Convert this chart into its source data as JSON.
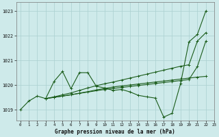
{
  "title": "Graphe pression niveau de la mer (hPa)",
  "bg_color": "#ceeaea",
  "grid_color": "#aad0d0",
  "line_color": "#1a5c1a",
  "xlim": [
    -0.5,
    23
  ],
  "ylim": [
    1018.55,
    1023.35
  ],
  "yticks": [
    1019,
    1020,
    1021,
    1022,
    1023
  ],
  "xticks": [
    0,
    1,
    2,
    3,
    4,
    5,
    6,
    7,
    8,
    9,
    10,
    11,
    12,
    13,
    14,
    15,
    16,
    17,
    18,
    19,
    20,
    21,
    22,
    23
  ],
  "s1_x": [
    0,
    1,
    2,
    3,
    4,
    5,
    6,
    7,
    8,
    9,
    10,
    11,
    12,
    13,
    14,
    15,
    16,
    17,
    18,
    19,
    20,
    21,
    22
  ],
  "s1_y": [
    1019.0,
    1019.35,
    1019.55,
    1019.45,
    1020.15,
    1020.55,
    1019.85,
    1020.5,
    1020.5,
    1019.95,
    1019.88,
    1019.78,
    1019.82,
    1019.72,
    1019.58,
    1019.52,
    1019.47,
    1018.7,
    1018.85,
    1020.05,
    1021.75,
    1022.05,
    1023.0
  ],
  "s2_x": [
    3,
    4,
    5,
    6,
    7,
    8,
    9,
    10,
    11,
    12,
    13,
    14,
    15,
    16,
    17,
    18,
    19,
    20,
    21,
    22
  ],
  "s2_y": [
    1019.45,
    1019.52,
    1019.6,
    1019.68,
    1019.78,
    1019.88,
    1019.97,
    1020.05,
    1020.12,
    1020.2,
    1020.28,
    1020.36,
    1020.44,
    1020.52,
    1020.6,
    1020.68,
    1020.76,
    1020.82,
    1021.78,
    1022.12
  ],
  "s3_x": [
    3,
    4,
    5,
    6,
    7,
    8,
    9,
    10,
    11,
    12,
    13,
    14,
    15,
    16,
    17,
    18,
    19,
    20,
    21,
    22
  ],
  "s3_y": [
    1019.45,
    1019.5,
    1019.55,
    1019.6,
    1019.67,
    1019.73,
    1019.8,
    1019.86,
    1019.92,
    1019.96,
    1020.0,
    1020.04,
    1020.08,
    1020.12,
    1020.16,
    1020.2,
    1020.24,
    1020.28,
    1020.32,
    1020.35
  ],
  "s4_x": [
    3,
    4,
    10,
    11,
    12,
    13,
    14,
    15,
    16,
    17,
    18,
    19,
    20,
    21,
    22
  ],
  "s4_y": [
    1019.45,
    1019.5,
    1019.82,
    1019.86,
    1019.9,
    1019.94,
    1019.98,
    1020.02,
    1020.06,
    1020.1,
    1020.14,
    1020.18,
    1020.22,
    1020.75,
    1021.78
  ]
}
